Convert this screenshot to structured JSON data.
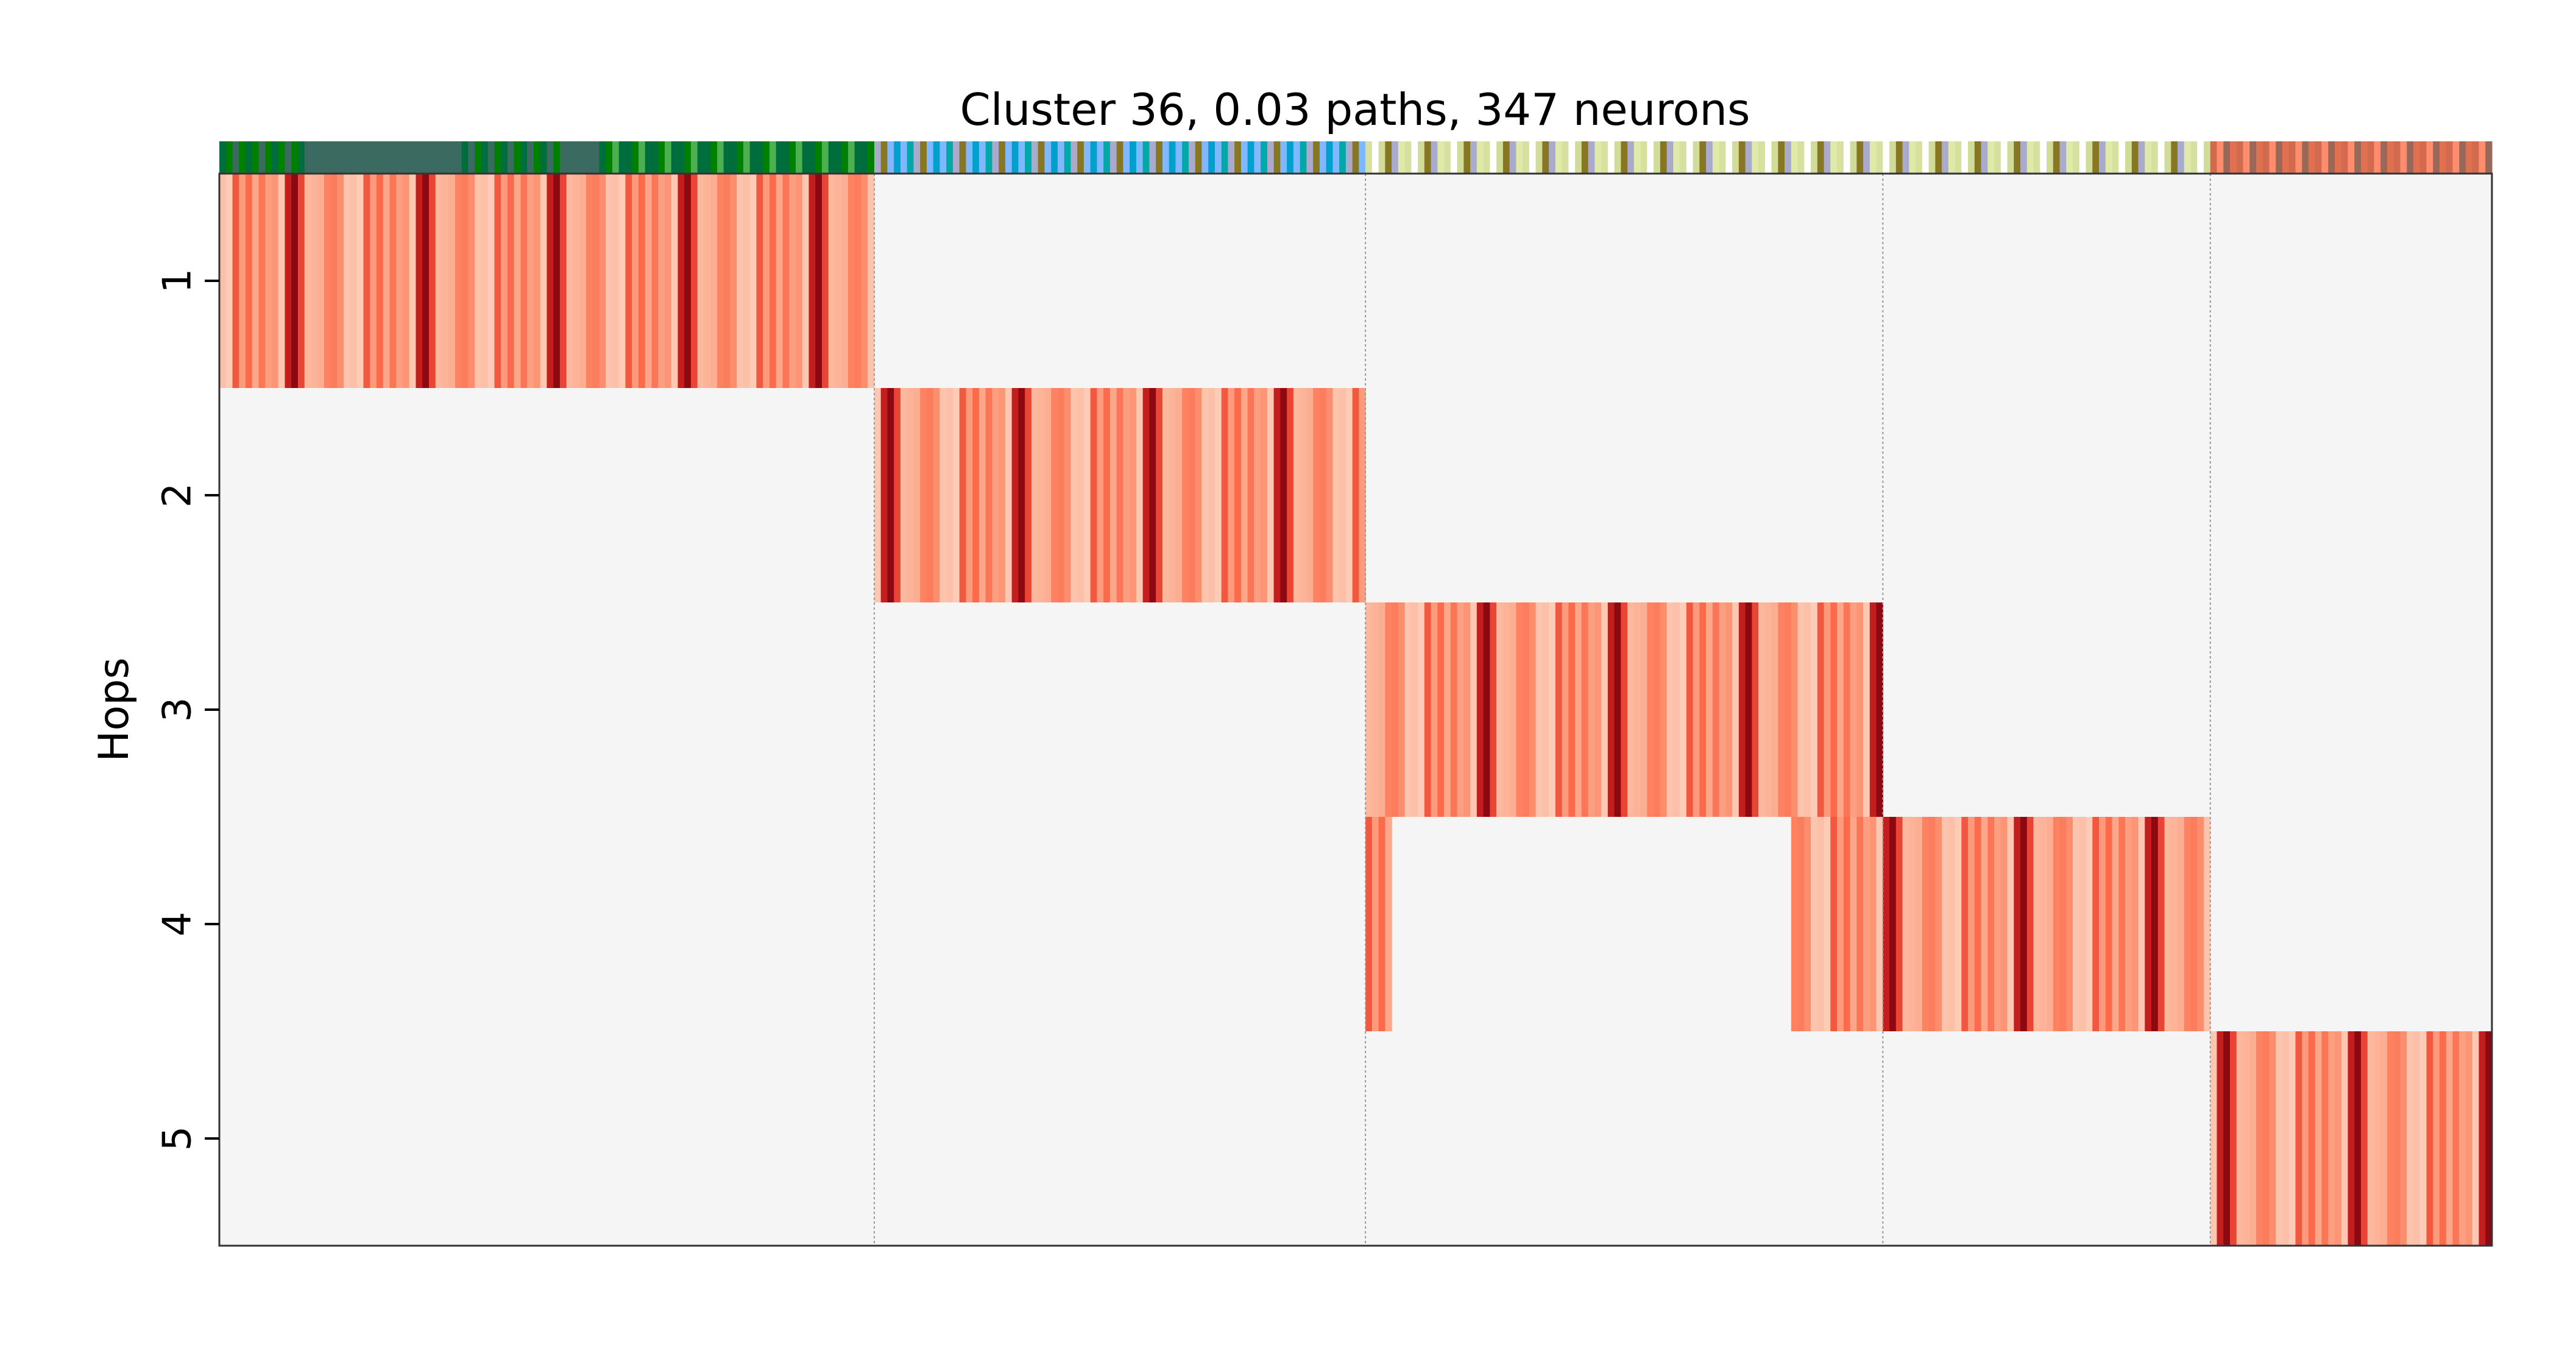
{
  "chart_data": {
    "type": "heatmap",
    "title": "Cluster 36, 0.03 paths, 347 neurons",
    "ylabel": "Hops",
    "xlabel": "",
    "y_categories": [
      "1",
      "2",
      "3",
      "4",
      "5"
    ],
    "neuron_count": 347,
    "colormap": "Reds",
    "background_color": "#f5f5f5",
    "group_separators": [
      100,
      175,
      254,
      304
    ],
    "hop_spans": [
      {
        "hop": "1",
        "start": 0,
        "end": 100
      },
      {
        "hop": "2",
        "start": 100,
        "end": 175
      },
      {
        "hop": "3",
        "start": 175,
        "end": 254
      },
      {
        "hop": "4",
        "start": 175,
        "end": 179
      },
      {
        "hop": "4",
        "start": 240,
        "end": 304
      },
      {
        "hop": "5",
        "start": 304,
        "end": 347
      }
    ],
    "intensity_pattern": [
      0.15,
      0.3,
      0.45,
      0.12,
      0.6,
      0.22,
      0.35,
      0.1,
      0.5,
      0.28,
      0.75,
      0.18,
      0.4,
      0.13,
      0.55,
      0.25,
      0.32,
      0.9,
      0.2,
      0.42
    ],
    "type_colors": [
      {
        "start": 0,
        "end": 13,
        "colors": [
          "#006d3c",
          "#008000",
          "#3a6a60",
          "#008000"
        ]
      },
      {
        "start": 13,
        "end": 37,
        "colors": [
          "#3a6a60"
        ]
      },
      {
        "start": 37,
        "end": 52,
        "colors": [
          "#006d3c",
          "#008000",
          "#3a6a60"
        ]
      },
      {
        "start": 52,
        "end": 58,
        "colors": [
          "#3a6a60"
        ]
      },
      {
        "start": 58,
        "end": 100,
        "colors": [
          "#006d3c",
          "#008000",
          "#4caf50",
          "#006d3c"
        ]
      },
      {
        "start": 100,
        "end": 175,
        "colors": [
          "#aaaacc",
          "#00a8a8",
          "#80b8ff",
          "#00a0cc",
          "#80b8ff",
          "#887722"
        ]
      },
      {
        "start": 175,
        "end": 304,
        "colors": [
          "#d8e0a0",
          "#e0eaa8",
          "#aaaacc",
          "#887722",
          "#d0dc98",
          "#ffffff"
        ]
      },
      {
        "start": 304,
        "end": 347,
        "colors": [
          "#d26a50",
          "#ff8c6c",
          "#9a6858",
          "#e07050"
        ]
      }
    ]
  }
}
